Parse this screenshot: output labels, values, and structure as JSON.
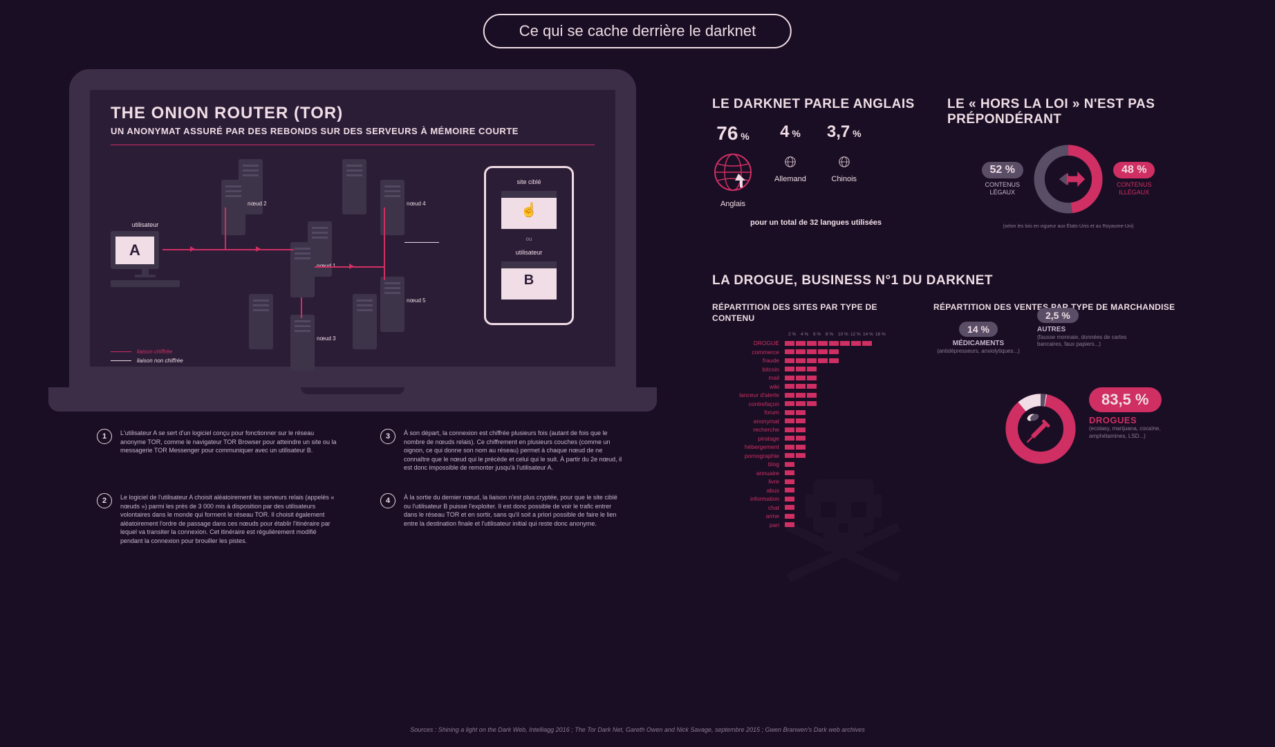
{
  "title": "Ce qui se cache derrière le darknet",
  "tor": {
    "title": "THE ONION ROUTER (TOR)",
    "subtitle": "UN ANONYMAT ASSURÉ PAR DES REBONDS SUR DES SERVEURS À MÉMOIRE COURTE",
    "user_a_label": "utilisateur",
    "user_a_letter": "A",
    "user_b_label": "utilisateur",
    "user_b_letter": "B",
    "site_label": "site ciblé",
    "ou": "ou",
    "nodes": [
      "nœud 1",
      "nœud 2",
      "nœud 3",
      "nœud 4",
      "nœud 5"
    ],
    "legend_encrypted": "liaison chiffrée",
    "legend_unencrypted": "liaison non chiffrée",
    "colors": {
      "encrypted": "#cf2f63",
      "unencrypted": "#f0dde5"
    }
  },
  "steps": [
    "L'utilisateur A se sert d'un logiciel conçu pour fonctionner sur le réseau anonyme TOR, comme le navigateur TOR Browser pour atteindre un site ou la messagerie TOR Messenger pour communiquer avec un utilisateur B.",
    "Le logiciel de l'utilisateur A choisit aléatoirement les serveurs relais (appelés « nœuds ») parmi les près de 3 000 mis à disposition par des utilisateurs volontaires dans le monde qui forment le réseau TOR. Il choisit également aléatoirement l'ordre de passage dans ces nœuds pour établir l'itinéraire par lequel va transiter la connexion. Cet itinéraire est régulièrement modifié pendant la connexion pour brouiller les pistes.",
    "À son départ, la connexion est chiffrée plusieurs fois (autant de fois que le nombre de nœuds relais). Ce chiffrement en plusieurs couches (comme un oignon, ce qui donne son nom au réseau) permet à chaque nœud de ne connaître que le nœud qui le précède et celui qui le suit. À partir du 2e nœud, il est donc impossible de remonter jusqu'à l'utilisateur A.",
    "À la sortie du dernier nœud, la liaison n'est plus cryptée, pour que le site ciblé ou l'utilisateur B puisse l'exploiter. Il est donc possible de voir le trafic entrer dans le réseau TOR et en sortir, sans qu'il soit a priori possible de faire le lien entre la destination finale et l'utilisateur initial qui reste donc anonyme."
  ],
  "languages": {
    "title": "LE DARKNET PARLE ANGLAIS",
    "items": [
      {
        "pct": "76",
        "name": "Anglais",
        "big": true
      },
      {
        "pct": "4",
        "name": "Allemand",
        "big": false
      },
      {
        "pct": "3,7",
        "name": "Chinois",
        "big": false
      }
    ],
    "footer": "pour un total de 32 langues utilisées",
    "globe_color": "#cf2f63"
  },
  "legal": {
    "title": "LE « HORS LA LOI » N'EST PAS PRÉPONDÉRANT",
    "legal_pct": "52 %",
    "legal_label": "CONTENUS\nLÉGAUX",
    "illegal_pct": "48 %",
    "illegal_label": "CONTENUS\nILLÉGAUX",
    "legal_value": 52,
    "illegal_value": 48,
    "colors": {
      "legal": "#5a4d66",
      "illegal": "#cf2f63"
    },
    "footnote": "(selon les lois en vigueur aux États-Unis et au Royaume-Uni)"
  },
  "drugs": {
    "title": "LA DROGUE, BUSINESS N°1 DU DARKNET",
    "content_col_title": "RÉPARTITION DES SITES PAR TYPE DE CONTENU",
    "sales_col_title": "RÉPARTITION DES VENTES PAR TYPE DE MARCHANDISE",
    "axis_labels": [
      "2 %",
      "4 %",
      "6 %",
      "8 %",
      "10 %",
      "12 %",
      "14 %",
      "16 %"
    ],
    "max_segments": 8,
    "bars": [
      {
        "label": "DROGUE",
        "val": 8
      },
      {
        "label": "commerce",
        "val": 5
      },
      {
        "label": "fraude",
        "val": 5
      },
      {
        "label": "bitcoin",
        "val": 3
      },
      {
        "label": "mail",
        "val": 3
      },
      {
        "label": "wiki",
        "val": 3
      },
      {
        "label": "lanceur d'alerte",
        "val": 3
      },
      {
        "label": "contrefaçon",
        "val": 3
      },
      {
        "label": "forum",
        "val": 2
      },
      {
        "label": "anonymat",
        "val": 2
      },
      {
        "label": "recherche",
        "val": 2
      },
      {
        "label": "piratage",
        "val": 2
      },
      {
        "label": "hébergement",
        "val": 2
      },
      {
        "label": "pornographie",
        "val": 2
      },
      {
        "label": "blog",
        "val": 1
      },
      {
        "label": "annuaire",
        "val": 1
      },
      {
        "label": "livre",
        "val": 1
      },
      {
        "label": "abus",
        "val": 1
      },
      {
        "label": "information",
        "val": 1
      },
      {
        "label": "chat",
        "val": 1
      },
      {
        "label": "arme",
        "val": 1
      },
      {
        "label": "pari",
        "val": 1
      }
    ],
    "bar_color_on": "#cf2f63",
    "bar_color_off": "#4a3d56",
    "sales": {
      "meds_pct": "14 %",
      "meds_label": "MÉDICAMENTS",
      "meds_sub": "(antidépresseurs, anxiolytiques...)",
      "other_pct": "2,5 %",
      "other_label": "AUTRES",
      "other_sub": "(fausse monnaie, données de cartes bancaires, faux papiers...)",
      "drugs_pct": "83,5 %",
      "drugs_label": "DROGUES",
      "drugs_sub": "(ecstasy, marijuana, cocaïne, amphétamines, LSD...)",
      "drugs_value": 83.5,
      "meds_value": 14,
      "other_value": 2.5,
      "colors": {
        "drugs": "#cf2f63",
        "meds": "#f0dde5",
        "other": "#5a4d66"
      }
    }
  },
  "sources": "Sources : Shining a light on the Dark Web, Intelliagg 2016 ; The Tor Dark Net, Gareth Owen and Nick Savage, septembre 2015 ; Gwen Branwen's Dark web archives"
}
